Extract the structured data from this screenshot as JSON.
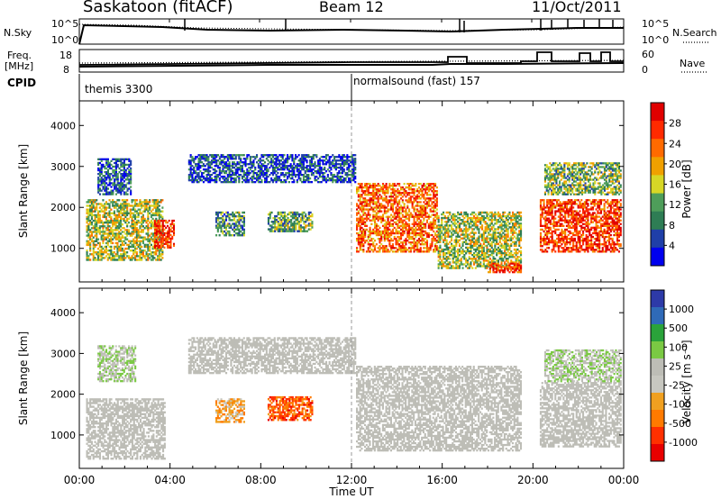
{
  "header": {
    "station": "Saskatoon (fitACF)",
    "beam": "Beam 12",
    "date": "11/Oct/2011"
  },
  "strip_labels": {
    "nsky": "N.Sky",
    "nsky_top": "10^5",
    "nsky_bottom": "10^0",
    "freq_line1": "Freq.",
    "freq_line2": "[MHz]",
    "freq_top": "18",
    "freq_bottom": "8",
    "cpid": "CPID",
    "nsearch": "N.Search",
    "nsearch_top": "10^5",
    "nsearch_bottom": "10^0",
    "nave": "Nave",
    "nave_top": "60",
    "nave_bottom": "0"
  },
  "cpid_entries": [
    {
      "label": "themis 3300",
      "start_hour": 0
    },
    {
      "label": "normalsound (fast) 157",
      "start_hour": 12
    }
  ],
  "colors": {
    "power_scale": [
      "#0000ee",
      "#1f3fa8",
      "#2e7d54",
      "#4e9e5a",
      "#d7d726",
      "#f0a000",
      "#ff6a00",
      "#ff2a00",
      "#e00000"
    ],
    "velocity_scale": [
      "#2d3aa8",
      "#2f6ab8",
      "#2aa33a",
      "#7ac943",
      "#bdbdb6",
      "#c7c7c0",
      "#f0a020",
      "#ff7a00",
      "#ff3000",
      "#e80000"
    ],
    "ground_scatter": "#bdbdb6"
  },
  "chart_data": [
    {
      "type": "heatmap",
      "title": "Power",
      "xlabel": "Time UT",
      "ylabel": "Slant Range [km]",
      "x_ticks": [
        "00:00",
        "04:00",
        "08:00",
        "12:00",
        "16:00",
        "20:00",
        "00:00"
      ],
      "xlim_hours": [
        0,
        24
      ],
      "ylim": [
        180,
        4600
      ],
      "y_ticks": [
        1000,
        2000,
        3000,
        4000
      ],
      "colorbar": {
        "label": "Power [dB]",
        "ticks": [
          "4",
          "8",
          "12",
          "16",
          "20",
          "24",
          "28"
        ],
        "range": [
          0,
          30
        ]
      },
      "echo_regions": [
        {
          "t0": 0.3,
          "t1": 3.7,
          "r0": 700,
          "r1": 2200,
          "v": 14
        },
        {
          "t0": 3.3,
          "t1": 4.2,
          "r0": 1000,
          "r1": 1700,
          "v": 26
        },
        {
          "t0": 0.8,
          "t1": 2.3,
          "r0": 2300,
          "r1": 3200,
          "v": 6
        },
        {
          "t0": 6.0,
          "t1": 7.3,
          "r0": 1300,
          "r1": 1900,
          "v": 10
        },
        {
          "t0": 8.3,
          "t1": 10.3,
          "r0": 1400,
          "r1": 1900,
          "v": 11
        },
        {
          "t0": 4.8,
          "t1": 12.2,
          "r0": 2600,
          "r1": 3300,
          "v": 5
        },
        {
          "t0": 12.2,
          "t1": 15.8,
          "r0": 900,
          "r1": 2600,
          "v": 22
        },
        {
          "t0": 15.8,
          "t1": 19.5,
          "r0": 500,
          "r1": 1900,
          "v": 14
        },
        {
          "t0": 18.0,
          "t1": 19.5,
          "r0": 400,
          "r1": 650,
          "v": 25
        },
        {
          "t0": 20.3,
          "t1": 23.9,
          "r0": 900,
          "r1": 2200,
          "v": 25
        },
        {
          "t0": 20.5,
          "t1": 23.9,
          "r0": 2300,
          "r1": 3100,
          "v": 12
        }
      ]
    },
    {
      "type": "heatmap",
      "title": "Velocity",
      "xlabel": "Time UT",
      "ylabel": "Slant Range [km]",
      "x_ticks": [
        "00:00",
        "04:00",
        "08:00",
        "12:00",
        "16:00",
        "20:00",
        "00:00"
      ],
      "xlim_hours": [
        0,
        24
      ],
      "ylim": [
        180,
        4600
      ],
      "y_ticks": [
        1000,
        2000,
        3000,
        4000
      ],
      "colorbar": {
        "label": "Velocity [m s⁻¹]",
        "ticks": [
          "1000",
          "500",
          "100",
          "25",
          "-25",
          "-100",
          "-500",
          "-1000"
        ],
        "range": [
          -1000,
          1000
        ]
      },
      "echo_regions": [
        {
          "t0": 0.3,
          "t1": 3.8,
          "r0": 400,
          "r1": 1900,
          "v": 0
        },
        {
          "t0": 0.8,
          "t1": 2.5,
          "r0": 2300,
          "r1": 3200,
          "v": 150
        },
        {
          "t0": 6.0,
          "t1": 7.3,
          "r0": 1300,
          "r1": 1900,
          "v": -300
        },
        {
          "t0": 8.3,
          "t1": 10.3,
          "r0": 1350,
          "r1": 1950,
          "v": -600
        },
        {
          "t0": 4.8,
          "t1": 12.2,
          "r0": 2500,
          "r1": 3400,
          "v": 0
        },
        {
          "t0": 12.2,
          "t1": 19.5,
          "r0": 600,
          "r1": 2700,
          "v": 0
        },
        {
          "t0": 20.3,
          "t1": 23.9,
          "r0": 700,
          "r1": 2300,
          "v": 0
        },
        {
          "t0": 20.5,
          "t1": 23.9,
          "r0": 2300,
          "r1": 3100,
          "v": 120
        }
      ]
    }
  ]
}
